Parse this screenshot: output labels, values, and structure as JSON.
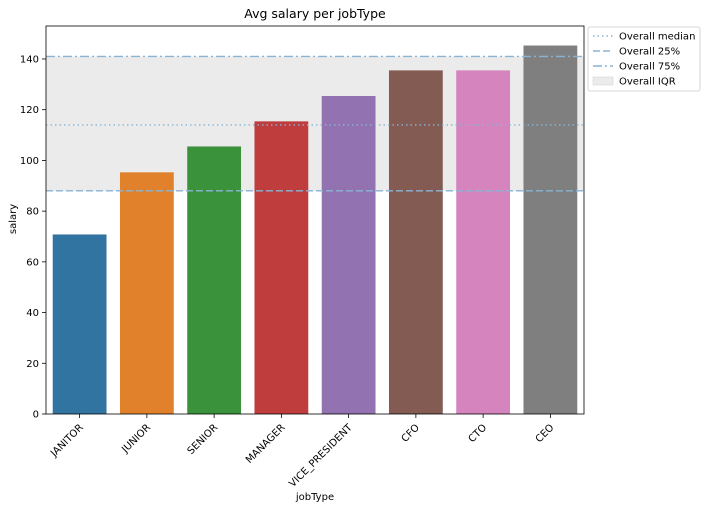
{
  "chart_data": {
    "type": "bar",
    "title": "Avg salary per jobType",
    "xlabel": "jobType",
    "ylabel": "salary",
    "categories": [
      "JANITOR",
      "JUNIOR",
      "SENIOR",
      "MANAGER",
      "VICE_PRESIDENT",
      "CFO",
      "CTO",
      "CEO"
    ],
    "values": [
      70.8,
      95.3,
      105.5,
      115.4,
      125.4,
      135.5,
      135.5,
      145.3
    ],
    "colors": [
      "#3274a1",
      "#e1812c",
      "#3a923a",
      "#c03d3e",
      "#9372b2",
      "#845b53",
      "#d684bd",
      "#7f7f7f"
    ],
    "ylim": [
      0,
      153
    ],
    "yticks": [
      0,
      20,
      40,
      60,
      80,
      100,
      120,
      140
    ],
    "reference_lines": {
      "median": 114,
      "q25": 88,
      "q75": 141
    },
    "legend": {
      "placement": "outside-top-right",
      "entries": [
        "Overall median",
        "Overall 25%",
        "Overall 75%",
        "Overall IQR"
      ]
    },
    "grid": false
  }
}
